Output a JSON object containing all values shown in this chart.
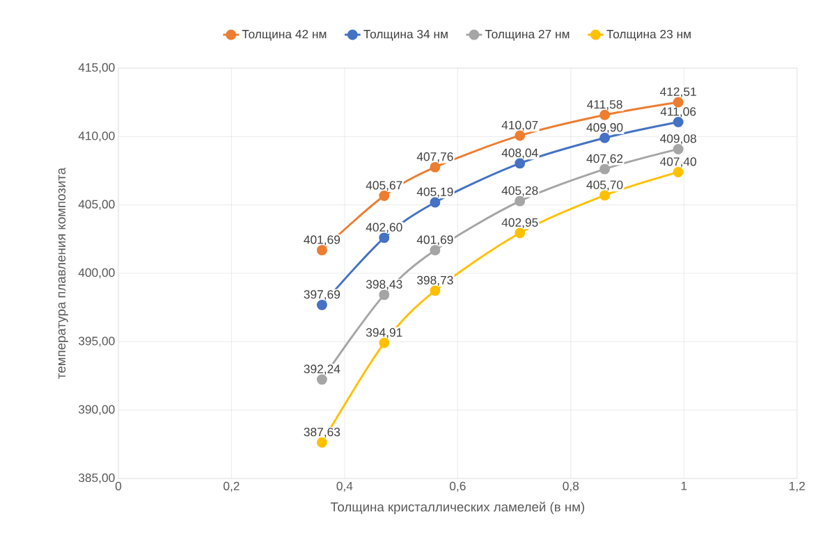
{
  "chart_data": {
    "type": "line",
    "xlabel": "Толщина кристаллических ламелей (в нм)",
    "ylabel": "температура плавления композита",
    "x": [
      0.36,
      0.47,
      0.56,
      0.71,
      0.86,
      0.99
    ],
    "series": [
      {
        "name": "Толщина 42 нм",
        "color": "#ed7d31",
        "values": [
          401.69,
          405.67,
          407.76,
          410.07,
          411.58,
          412.51
        ],
        "value_labels": [
          "401,69",
          "405,67",
          "407,76",
          "410,07",
          "411,58",
          "412,51"
        ]
      },
      {
        "name": "Толщина 34 нм",
        "color": "#4472c4",
        "values": [
          397.69,
          402.6,
          405.19,
          408.04,
          409.9,
          411.06
        ],
        "value_labels": [
          "397,69",
          "402,60",
          "405,19",
          "408,04",
          "409,90",
          "411,06"
        ]
      },
      {
        "name": "Толщина 27 нм",
        "color": "#a5a5a5",
        "values": [
          392.24,
          398.43,
          401.69,
          405.28,
          407.62,
          409.08
        ],
        "value_labels": [
          "392,24",
          "398,43",
          "401,69",
          "405,28",
          "407,62",
          "409,08"
        ]
      },
      {
        "name": "Толщина 23 нм",
        "color": "#ffc000",
        "values": [
          387.63,
          394.91,
          398.73,
          402.95,
          405.7,
          407.4
        ],
        "value_labels": [
          "387,63",
          "394,91",
          "398,73",
          "402,95",
          "405,70",
          "407,40"
        ]
      }
    ],
    "xlim": [
      0,
      1.2
    ],
    "ylim": [
      385,
      415
    ],
    "xticks": [
      0,
      {
        "value": 0.2,
        "label": "0,2"
      },
      {
        "value": 0.4,
        "label": "0,4"
      },
      {
        "value": 0.6,
        "label": "0,6"
      },
      {
        "value": 0.8,
        "label": "0,8"
      },
      1,
      {
        "value": 1.2,
        "label": "1,2"
      }
    ],
    "yticks": [
      {
        "value": 385,
        "label": "385,00"
      },
      {
        "value": 390,
        "label": "390,00"
      },
      {
        "value": 395,
        "label": "395,00"
      },
      {
        "value": 400,
        "label": "400,00"
      },
      {
        "value": 405,
        "label": "405,00"
      },
      {
        "value": 410,
        "label": "410,00"
      },
      {
        "value": 415,
        "label": "415,00"
      }
    ],
    "grid": true,
    "legend": "top",
    "marker": "circle"
  }
}
